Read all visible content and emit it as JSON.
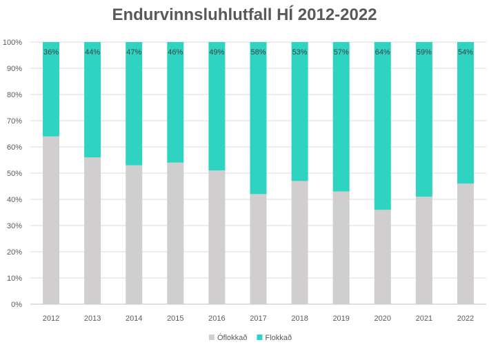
{
  "chart_data": {
    "type": "bar",
    "stacked": true,
    "title": "Endurvinnsluhlutfall HÍ 2012-2022",
    "categories": [
      "2012",
      "2013",
      "2014",
      "2015",
      "2016",
      "2017",
      "2018",
      "2019",
      "2020",
      "2021",
      "2022"
    ],
    "series": [
      {
        "name": "Óflokkað",
        "color": "#d0cece",
        "values": [
          64,
          56,
          53,
          54,
          51,
          42,
          47,
          43,
          36,
          41,
          46
        ]
      },
      {
        "name": "Flokkað",
        "color": "#2ed3c1",
        "values": [
          36,
          44,
          47,
          46,
          49,
          58,
          53,
          57,
          64,
          59,
          54
        ],
        "data_labels": [
          "36%",
          "44%",
          "47%",
          "46%",
          "49%",
          "58%",
          "53%",
          "57%",
          "64%",
          "59%",
          "54%"
        ]
      }
    ],
    "ylim": [
      0,
      100
    ],
    "yticks": [
      "0%",
      "10%",
      "20%",
      "30%",
      "40%",
      "50%",
      "60%",
      "70%",
      "80%",
      "90%",
      "100%"
    ],
    "grid": true,
    "legend_position": "bottom"
  }
}
